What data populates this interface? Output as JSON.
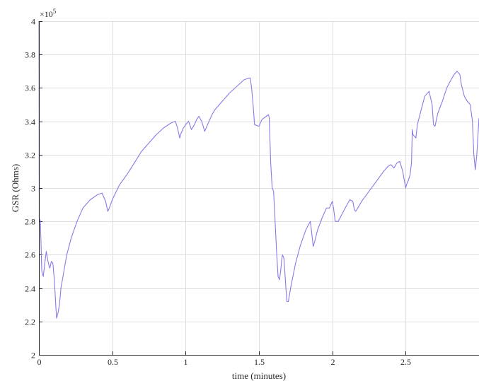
{
  "chart_data": {
    "type": "line",
    "title": "",
    "xlabel": "time (minutes)",
    "ylabel": "GSR (Ohms)",
    "y_exponent_label": "×10",
    "y_exponent_power": "5",
    "xlim": [
      0,
      3.0
    ],
    "ylim": [
      2,
      4
    ],
    "grid": true,
    "x_ticks": [
      0,
      0.5,
      1,
      1.5,
      2,
      2.5
    ],
    "x_tick_labels": [
      "0",
      "0.5",
      "1",
      "1.5",
      "2",
      "2.5"
    ],
    "y_ticks": [
      2,
      2.2,
      2.4,
      2.6,
      2.8,
      3,
      3.2,
      3.4,
      3.6,
      3.8,
      4
    ],
    "y_tick_labels": [
      "2",
      "2.2",
      "2.4",
      "2.6",
      "2.8",
      "3",
      "3.2",
      "3.4",
      "3.6",
      "3.8",
      "4"
    ],
    "colors": {
      "line": "#8c78e8"
    },
    "series": [
      {
        "x": [
          0,
          0.002,
          0.01,
          0.02,
          0.03,
          0.04,
          0.05,
          0.06,
          0.07,
          0.075,
          0.085,
          0.095,
          0.105,
          0.115,
          0.12,
          0.13,
          0.14,
          0.145,
          0.15,
          0.16,
          0.17,
          0.19,
          0.22,
          0.26,
          0.3,
          0.35,
          0.4,
          0.43,
          0.455,
          0.47,
          0.48,
          0.5,
          0.55,
          0.6,
          0.65,
          0.7,
          0.75,
          0.8,
          0.85,
          0.9,
          0.93,
          0.945,
          0.96,
          0.97,
          0.985,
          1.0,
          1.02,
          1.04,
          1.06,
          1.075,
          1.09,
          1.11,
          1.13,
          1.15,
          1.165,
          1.18,
          1.2,
          1.25,
          1.3,
          1.35,
          1.4,
          1.44,
          1.45,
          1.46,
          1.47,
          1.5,
          1.52,
          1.55,
          1.565,
          1.57,
          1.58,
          1.59,
          1.6,
          1.61,
          1.62,
          1.63,
          1.64,
          1.65,
          1.655,
          1.66,
          1.67,
          1.68,
          1.69,
          1.7,
          1.72,
          1.75,
          1.78,
          1.82,
          1.85,
          1.86,
          1.87,
          1.88,
          1.9,
          1.93,
          1.96,
          1.98,
          2.0,
          2.01,
          2.02,
          2.04,
          2.07,
          2.1,
          2.12,
          2.14,
          2.15,
          2.16,
          2.18,
          2.2,
          2.25,
          2.3,
          2.35,
          2.38,
          2.4,
          2.42,
          2.44,
          2.46,
          2.48,
          2.5,
          2.51,
          2.52,
          2.53,
          2.54,
          2.545,
          2.55,
          2.57,
          2.58,
          2.6,
          2.63,
          2.66,
          2.68,
          2.69,
          2.7,
          2.72,
          2.75,
          2.78,
          2.81,
          2.83,
          2.85,
          2.87,
          2.88,
          2.9,
          2.92,
          2.94,
          2.955,
          2.965,
          2.975,
          2.985,
          3.0
        ],
        "y": [
          4.0,
          2.82,
          2.8,
          2.5,
          2.47,
          2.55,
          2.62,
          2.57,
          2.53,
          2.52,
          2.56,
          2.55,
          2.45,
          2.3,
          2.22,
          2.25,
          2.3,
          2.35,
          2.4,
          2.45,
          2.5,
          2.6,
          2.7,
          2.8,
          2.88,
          2.93,
          2.96,
          2.97,
          2.92,
          2.86,
          2.88,
          2.93,
          3.02,
          3.08,
          3.15,
          3.22,
          3.27,
          3.32,
          3.36,
          3.39,
          3.4,
          3.36,
          3.3,
          3.33,
          3.36,
          3.38,
          3.4,
          3.35,
          3.38,
          3.41,
          3.43,
          3.4,
          3.34,
          3.38,
          3.41,
          3.44,
          3.47,
          3.52,
          3.57,
          3.61,
          3.65,
          3.66,
          3.6,
          3.5,
          3.38,
          3.37,
          3.41,
          3.43,
          3.44,
          3.42,
          3.15,
          3.0,
          2.98,
          2.8,
          2.62,
          2.47,
          2.45,
          2.52,
          2.57,
          2.6,
          2.58,
          2.45,
          2.32,
          2.32,
          2.42,
          2.55,
          2.65,
          2.75,
          2.8,
          2.73,
          2.65,
          2.68,
          2.75,
          2.82,
          2.88,
          2.88,
          2.92,
          2.87,
          2.8,
          2.8,
          2.85,
          2.9,
          2.93,
          2.92,
          2.87,
          2.86,
          2.89,
          2.92,
          2.98,
          3.04,
          3.1,
          3.13,
          3.14,
          3.12,
          3.15,
          3.16,
          3.1,
          3.0,
          3.03,
          3.05,
          3.08,
          3.15,
          3.35,
          3.32,
          3.3,
          3.38,
          3.45,
          3.55,
          3.58,
          3.5,
          3.38,
          3.37,
          3.45,
          3.52,
          3.6,
          3.65,
          3.68,
          3.7,
          3.68,
          3.62,
          3.55,
          3.52,
          3.5,
          3.4,
          3.2,
          3.11,
          3.2,
          3.42
        ]
      }
    ]
  }
}
